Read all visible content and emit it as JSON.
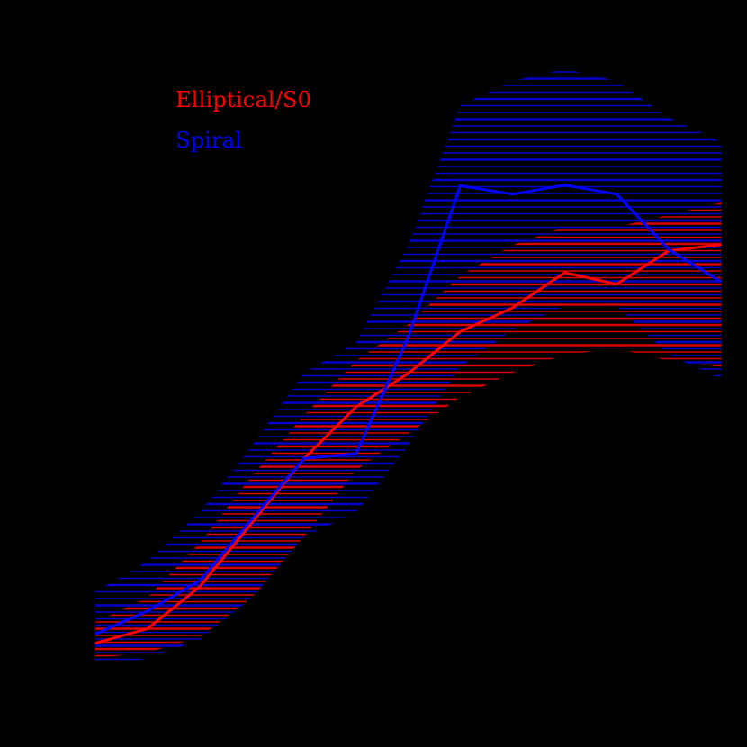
{
  "chart_data": {
    "type": "line",
    "title": "",
    "xlabel": "",
    "ylabel": "",
    "grid": false,
    "legend_position": "upper-left",
    "background": "#000000",
    "x": [
      0,
      1,
      2,
      3,
      4,
      5,
      6,
      7,
      8,
      9,
      10,
      11,
      12
    ],
    "xlim": [
      0,
      12
    ],
    "ylim": [
      0,
      100
    ],
    "series": [
      {
        "name": "Elliptical/S0",
        "color": "#ff0000",
        "values": [
          4.5,
          6.9,
          13.8,
          24.3,
          34.9,
          43.4,
          48.9,
          55.8,
          59.7,
          65.5,
          63.6,
          69.1,
          70.1
        ],
        "band_lower": [
          2.0,
          3.0,
          5.5,
          12.0,
          22.0,
          33.0,
          39.0,
          45.0,
          49.0,
          52.0,
          53.0,
          51.0,
          50.0
        ],
        "band_upper": [
          8.0,
          12.0,
          21.0,
          32.0,
          42.0,
          51.0,
          57.0,
          65.0,
          70.0,
          73.0,
          73.0,
          75.0,
          77.0
        ],
        "band_style": "horizontal-hatch"
      },
      {
        "name": "Spiral",
        "color": "#0000ff",
        "values": [
          6.0,
          9.8,
          14.8,
          24.9,
          34.9,
          35.7,
          54.9,
          79.8,
          78.4,
          79.9,
          78.4,
          69.3,
          64.0
        ],
        "band_lower": [
          0.5,
          2.0,
          5.0,
          12.0,
          22.0,
          26.0,
          37.0,
          50.0,
          56.0,
          60.0,
          60.0,
          52.0,
          48.0
        ],
        "band_upper": [
          13.0,
          18.0,
          26.0,
          37.0,
          49.0,
          54.0,
          70.0,
          93.0,
          97.0,
          99.0,
          97.0,
          91.0,
          87.0
        ],
        "band_style": "horizontal-hatch"
      }
    ],
    "legend": [
      "Elliptical/S0",
      "Spiral"
    ]
  },
  "legend": {
    "elliptical_label": "Elliptical/S0",
    "spiral_label": "Spiral"
  }
}
